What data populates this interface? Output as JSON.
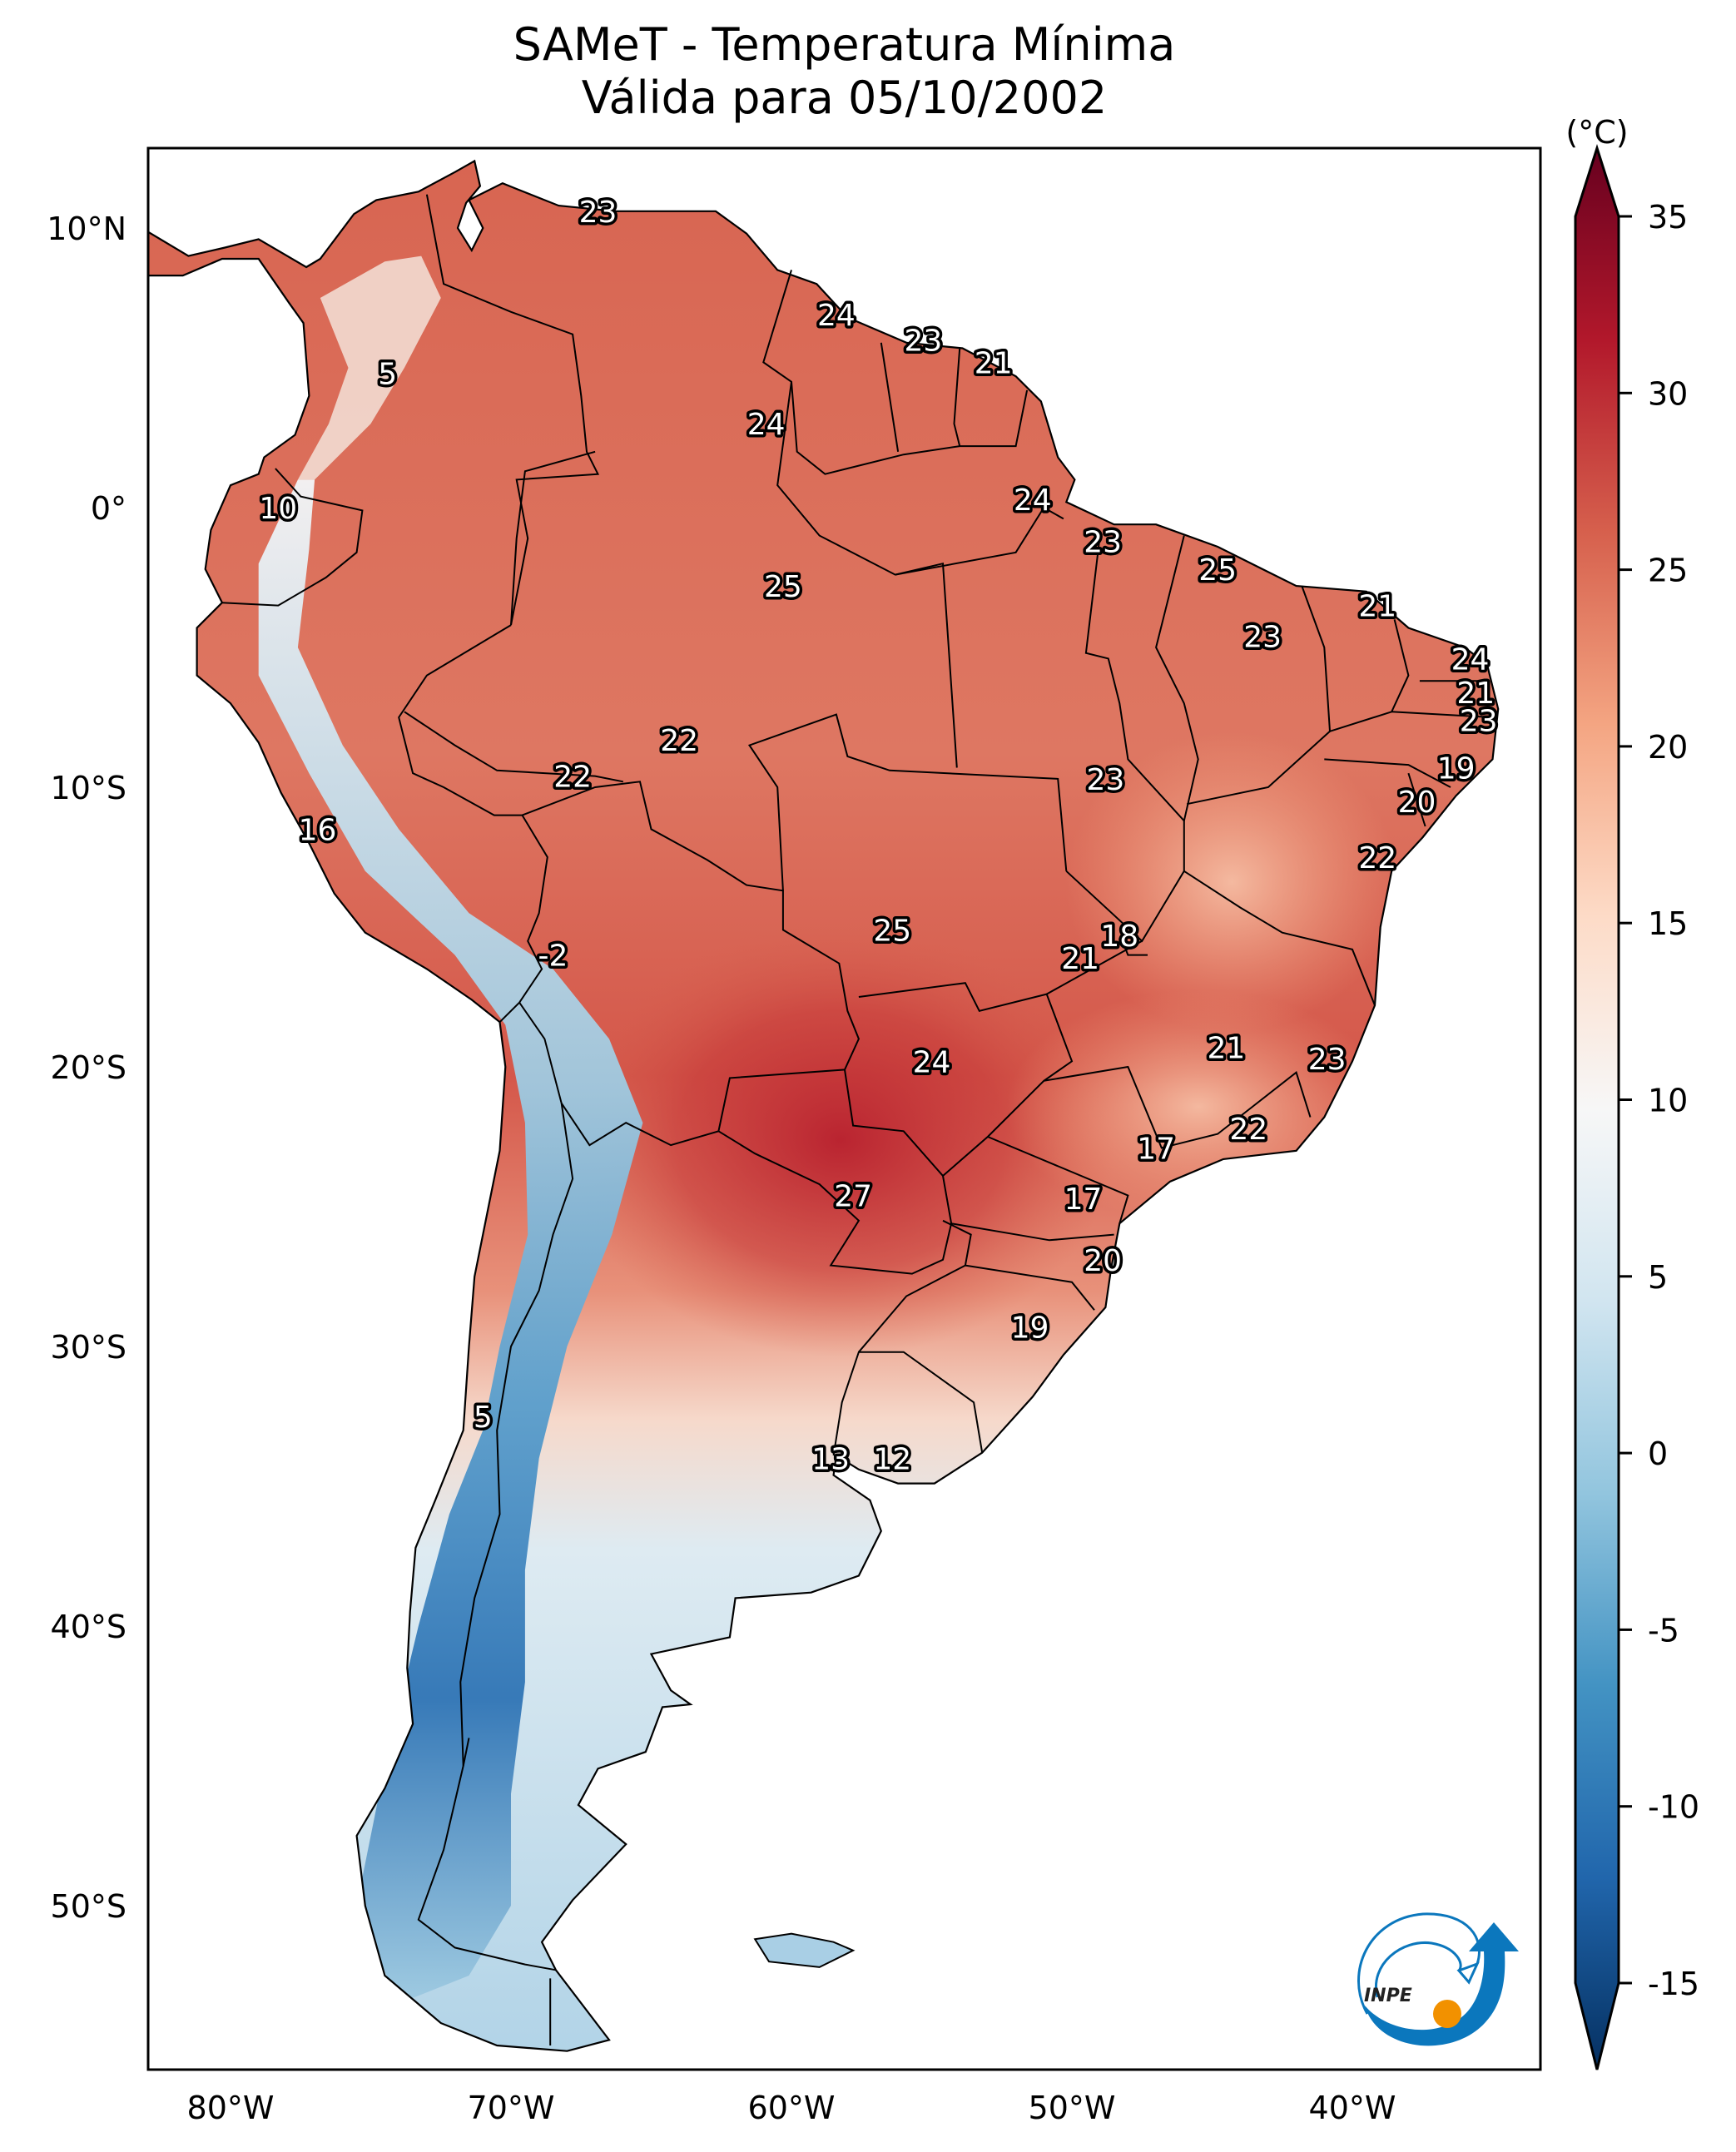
{
  "title": {
    "line1": "SAMeT - Temperatura Mínima",
    "line2": "Válida para 05/10/2002"
  },
  "logo": {
    "text": "INPE",
    "name": "inpe-logo"
  },
  "chart_data": {
    "type": "heatmap",
    "title": "SAMeT - Temperatura Mínima — Válida para 05/10/2002",
    "variable": "Minimum temperature",
    "units": "(°C)",
    "colormap": "RdBu_r",
    "extent": {
      "lon": [
        -83,
        -33
      ],
      "lat": [
        -56,
        13
      ]
    },
    "x_ticks": [
      {
        "value": -80,
        "label": "80°W"
      },
      {
        "value": -70,
        "label": "70°W"
      },
      {
        "value": -60,
        "label": "60°W"
      },
      {
        "value": -50,
        "label": "50°W"
      },
      {
        "value": -40,
        "label": "40°W"
      }
    ],
    "y_ticks": [
      {
        "value": 10,
        "label": "10°N"
      },
      {
        "value": 0,
        "label": "0°"
      },
      {
        "value": -10,
        "label": "10°S"
      },
      {
        "value": -20,
        "label": "20°S"
      },
      {
        "value": -30,
        "label": "30°S"
      },
      {
        "value": -40,
        "label": "40°S"
      },
      {
        "value": -50,
        "label": "50°S"
      }
    ],
    "colorbar": {
      "label": "(°C)",
      "range": [
        -15,
        35
      ],
      "extend": "both",
      "ticks": [
        35,
        30,
        25,
        20,
        15,
        10,
        5,
        0,
        -5,
        -10,
        -15
      ],
      "tick_labels": [
        "35",
        "30",
        "25",
        "20",
        "15",
        "10",
        "5",
        "0",
        "-5",
        "-10",
        "-15"
      ]
    },
    "station_values": [
      {
        "lon": -66.9,
        "lat": 10.6,
        "value": "23"
      },
      {
        "lon": -74.4,
        "lat": 4.8,
        "value": "5"
      },
      {
        "lon": -58.4,
        "lat": 6.9,
        "value": "24"
      },
      {
        "lon": -55.3,
        "lat": 6.0,
        "value": "23"
      },
      {
        "lon": -52.8,
        "lat": 5.2,
        "value": "21"
      },
      {
        "lon": -60.9,
        "lat": 3.0,
        "value": "24"
      },
      {
        "lon": -78.3,
        "lat": 0.0,
        "value": "10"
      },
      {
        "lon": -51.4,
        "lat": 0.3,
        "value": "24"
      },
      {
        "lon": -48.9,
        "lat": -1.2,
        "value": "23"
      },
      {
        "lon": -60.3,
        "lat": -2.8,
        "value": "25"
      },
      {
        "lon": -44.8,
        "lat": -2.2,
        "value": "25"
      },
      {
        "lon": -39.1,
        "lat": -3.5,
        "value": "21"
      },
      {
        "lon": -43.2,
        "lat": -4.6,
        "value": "23"
      },
      {
        "lon": -35.8,
        "lat": -5.4,
        "value": "24"
      },
      {
        "lon": -35.6,
        "lat": -6.6,
        "value": "21"
      },
      {
        "lon": -35.5,
        "lat": -7.6,
        "value": "23"
      },
      {
        "lon": -64.0,
        "lat": -8.3,
        "value": "22"
      },
      {
        "lon": -67.8,
        "lat": -9.6,
        "value": "22"
      },
      {
        "lon": -48.8,
        "lat": -9.7,
        "value": "23"
      },
      {
        "lon": -36.3,
        "lat": -9.3,
        "value": "19"
      },
      {
        "lon": -37.7,
        "lat": -10.5,
        "value": "20"
      },
      {
        "lon": -76.9,
        "lat": -11.5,
        "value": "16"
      },
      {
        "lon": -39.1,
        "lat": -12.5,
        "value": "22"
      },
      {
        "lon": -56.4,
        "lat": -15.1,
        "value": "25"
      },
      {
        "lon": -48.3,
        "lat": -15.3,
        "value": "18"
      },
      {
        "lon": -68.5,
        "lat": -16.0,
        "value": "-2"
      },
      {
        "lon": -49.7,
        "lat": -16.1,
        "value": "21"
      },
      {
        "lon": -55.0,
        "lat": -19.8,
        "value": "24"
      },
      {
        "lon": -44.5,
        "lat": -19.3,
        "value": "21"
      },
      {
        "lon": -40.9,
        "lat": -19.7,
        "value": "23"
      },
      {
        "lon": -43.7,
        "lat": -22.2,
        "value": "22"
      },
      {
        "lon": -47.0,
        "lat": -22.9,
        "value": "17"
      },
      {
        "lon": -57.8,
        "lat": -24.6,
        "value": "27"
      },
      {
        "lon": -49.6,
        "lat": -24.7,
        "value": "17"
      },
      {
        "lon": -48.9,
        "lat": -26.9,
        "value": "20"
      },
      {
        "lon": -51.5,
        "lat": -29.3,
        "value": "19"
      },
      {
        "lon": -71.0,
        "lat": -32.5,
        "value": "5"
      },
      {
        "lon": -58.6,
        "lat": -34.0,
        "value": "13"
      },
      {
        "lon": -56.4,
        "lat": -34.0,
        "value": "12"
      }
    ]
  }
}
